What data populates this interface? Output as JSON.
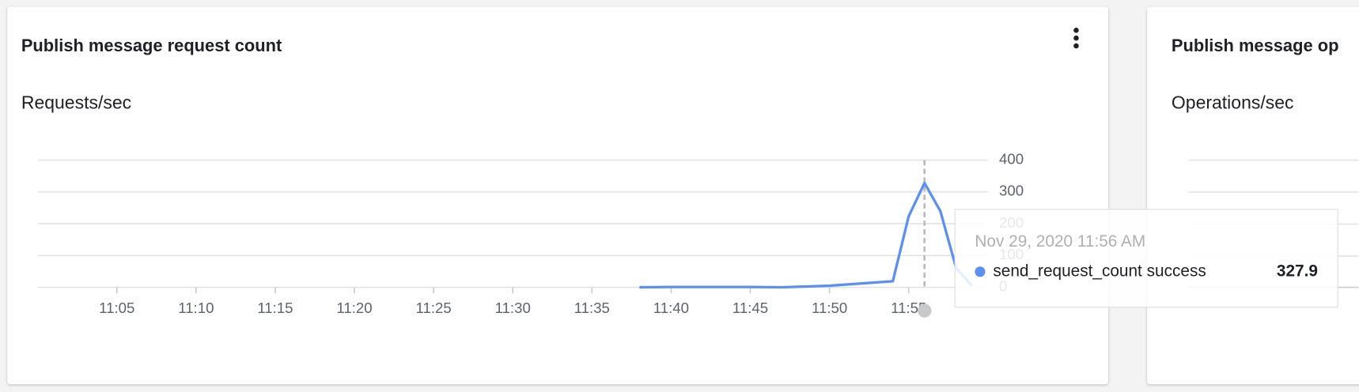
{
  "chart_data": {
    "type": "line",
    "title": "Publish message request count",
    "y_label": "Requests/sec",
    "x": [
      "11:38",
      "11:40",
      "11:45",
      "11:47",
      "11:50",
      "11:54",
      "11:55",
      "11:56",
      "11:57",
      "11:58",
      "11:59"
    ],
    "series": [
      {
        "name": "send_request_count success",
        "color": "#5b8ff0",
        "values": [
          0,
          1,
          1,
          0,
          5,
          19,
          223,
          327.9,
          240,
          60,
          5
        ]
      }
    ],
    "xlim": [
      "11:00",
      "12:00"
    ],
    "xticks": [
      "11:05",
      "11:10",
      "11:15",
      "11:20",
      "11:25",
      "11:30",
      "11:35",
      "11:40",
      "11:45",
      "11:50",
      "11:55"
    ],
    "ylim": [
      0,
      400
    ],
    "yticks": [
      0,
      100,
      200,
      300,
      400
    ],
    "grid": true,
    "tooltip": {
      "time": "Nov 29, 2020 11:56 AM",
      "x": "11:56",
      "point": 7
    }
  },
  "side_panel": {
    "title": "Publish message op",
    "y_label": "Operations/sec"
  }
}
